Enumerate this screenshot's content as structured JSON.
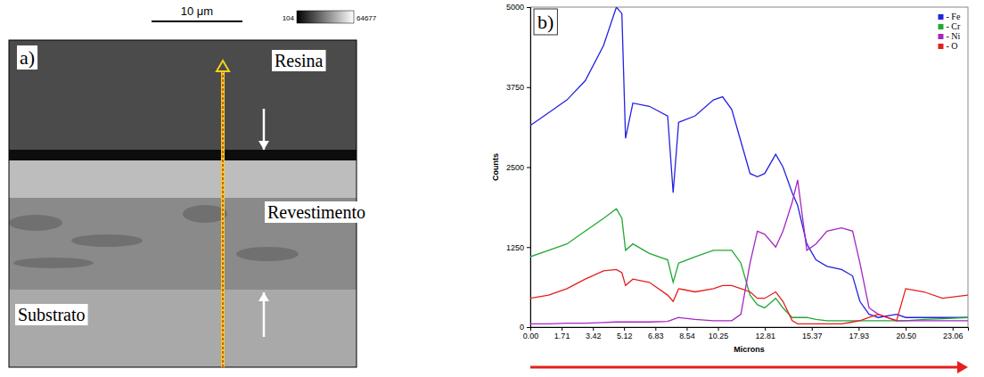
{
  "panel_a": {
    "label": "a)",
    "scale_bar": "10 μm",
    "colorbar_range": [
      104,
      64677
    ],
    "regions": [
      "Resina",
      "Revestimento",
      "Substrato"
    ]
  },
  "chart_data": {
    "type": "line",
    "title": "b)",
    "x_label": "Microns",
    "y_label": "Counts",
    "x": [
      0,
      1,
      2,
      3,
      4,
      4.7,
      5,
      5.2,
      5.6,
      6.5,
      7.5,
      7.8,
      8.1,
      9,
      10,
      10.5,
      11,
      11.5,
      12,
      12.4,
      12.8,
      13.4,
      13.8,
      14.3,
      14.6,
      15.1,
      15.6,
      16.2,
      17,
      17.6,
      18,
      18.5,
      19,
      20,
      20.5,
      21.5,
      22.5,
      23.9
    ],
    "series": [
      {
        "name": "- Fe",
        "color": "#2323e0",
        "values": [
          3150,
          3350,
          3550,
          3850,
          4400,
          5000,
          4900,
          2950,
          3500,
          3450,
          3300,
          2100,
          3200,
          3300,
          3550,
          3600,
          3400,
          2900,
          2400,
          2350,
          2400,
          2700,
          2500,
          2100,
          1900,
          1300,
          1050,
          950,
          900,
          800,
          400,
          200,
          150,
          200,
          150,
          150,
          150,
          150
        ]
      },
      {
        "name": "- Cr",
        "color": "#22a836",
        "values": [
          1100,
          1200,
          1300,
          1500,
          1700,
          1850,
          1700,
          1200,
          1300,
          1150,
          1050,
          700,
          1000,
          1100,
          1200,
          1200,
          1200,
          1000,
          500,
          350,
          300,
          450,
          300,
          150,
          150,
          150,
          120,
          100,
          100,
          100,
          100,
          100,
          100,
          100,
          100,
          120,
          130,
          150
        ]
      },
      {
        "name": "- Ni",
        "color": "#a526c4",
        "values": [
          50,
          50,
          60,
          60,
          70,
          80,
          80,
          80,
          80,
          80,
          90,
          120,
          150,
          120,
          100,
          100,
          100,
          200,
          1000,
          1500,
          1450,
          1250,
          1500,
          1950,
          2300,
          1200,
          1300,
          1500,
          1550,
          1500,
          1000,
          300,
          200,
          100,
          100,
          100,
          100,
          100
        ]
      },
      {
        "name": "- O",
        "color": "#e61e1e",
        "values": [
          450,
          500,
          600,
          750,
          880,
          900,
          850,
          650,
          750,
          700,
          500,
          400,
          600,
          550,
          600,
          650,
          650,
          600,
          550,
          450,
          450,
          550,
          400,
          100,
          50,
          50,
          50,
          50,
          50,
          80,
          100,
          150,
          200,
          100,
          600,
          550,
          450,
          500
        ]
      }
    ],
    "xlim": [
      0,
      23.9
    ],
    "xticks": [
      {
        "value": 0,
        "label": "0.00"
      },
      1.71,
      3.42,
      5.12,
      6.83,
      8.54,
      10.25,
      12.81,
      15.37,
      17.93,
      {
        "value": 20.5,
        "label": "20.50"
      },
      23.06
    ],
    "ylim": [
      0,
      5000
    ],
    "yticks": [
      0,
      1250,
      2500,
      3750,
      5000
    ],
    "grid": false,
    "legend": "upper right"
  }
}
